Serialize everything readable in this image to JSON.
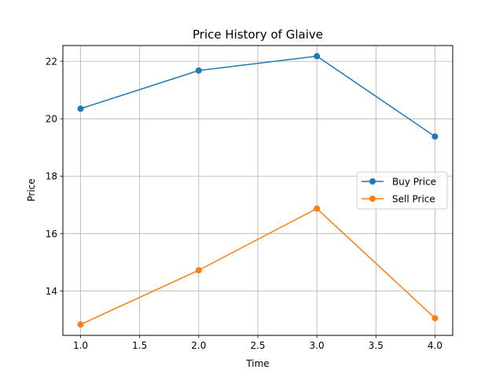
{
  "chart_data": {
    "type": "line",
    "title": "Price History of Glaive",
    "xlabel": "Time",
    "ylabel": "Price",
    "x": [
      1.0,
      2.0,
      3.0,
      4.0
    ],
    "xlim": [
      0.85,
      4.15
    ],
    "ylim": [
      12.45,
      22.55
    ],
    "xticks": [
      "1.0",
      "1.5",
      "2.0",
      "2.5",
      "3.0",
      "3.5",
      "4.0"
    ],
    "yticks": [
      "14",
      "16",
      "18",
      "20",
      "22"
    ],
    "grid": true,
    "legend_position": "center-right",
    "series": [
      {
        "name": "Buy Price",
        "color": "#1f77b4",
        "marker": "circle",
        "values": [
          20.35,
          21.68,
          22.18,
          19.38
        ]
      },
      {
        "name": "Sell Price",
        "color": "#ff7f0e",
        "marker": "circle",
        "values": [
          12.83,
          14.72,
          16.87,
          13.05
        ]
      }
    ]
  }
}
